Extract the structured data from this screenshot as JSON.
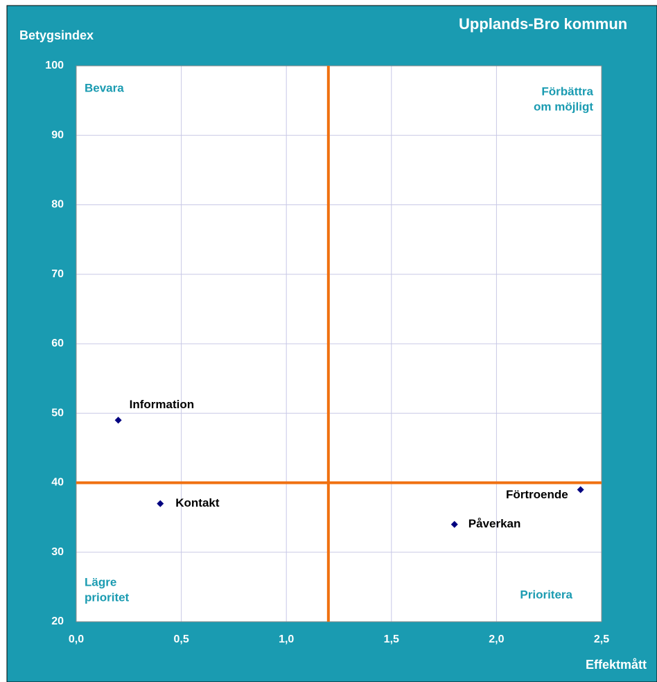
{
  "chart_data": {
    "type": "scatter",
    "title": "Upplands-Bro kommun",
    "y_label": "Betygsindex",
    "x_label": "Effektmått",
    "x": [
      0.2,
      0.4,
      1.8,
      2.4
    ],
    "values": [
      49,
      37,
      34,
      39
    ],
    "labels": [
      "Information",
      "Kontakt",
      "Påverkan",
      "Förtroende"
    ],
    "color": "#000080",
    "xlim": [
      0,
      2.5
    ],
    "ylim": [
      20,
      100
    ],
    "xticks": [
      {
        "value": 0,
        "label": "0,0"
      },
      {
        "value": 0.5,
        "label": "0,5"
      },
      {
        "value": 1,
        "label": "1,0"
      },
      {
        "value": 1.5,
        "label": "1,5"
      },
      {
        "value": 2,
        "label": "2,0"
      },
      {
        "value": 2.5,
        "label": "2,5"
      }
    ],
    "yticks": [
      20,
      30,
      40,
      50,
      60,
      70,
      80,
      90,
      100
    ],
    "grid": true,
    "reference_lines": {
      "x": 1.2,
      "y": 40,
      "color": "#f07010"
    },
    "quadrants": {
      "top_left": [
        "Bevara"
      ],
      "top_right": [
        "Förbättra",
        "om möjligt"
      ],
      "bottom_left": [
        "Lägre",
        "prioritet"
      ],
      "bottom_right": [
        "Prioritera"
      ]
    }
  }
}
